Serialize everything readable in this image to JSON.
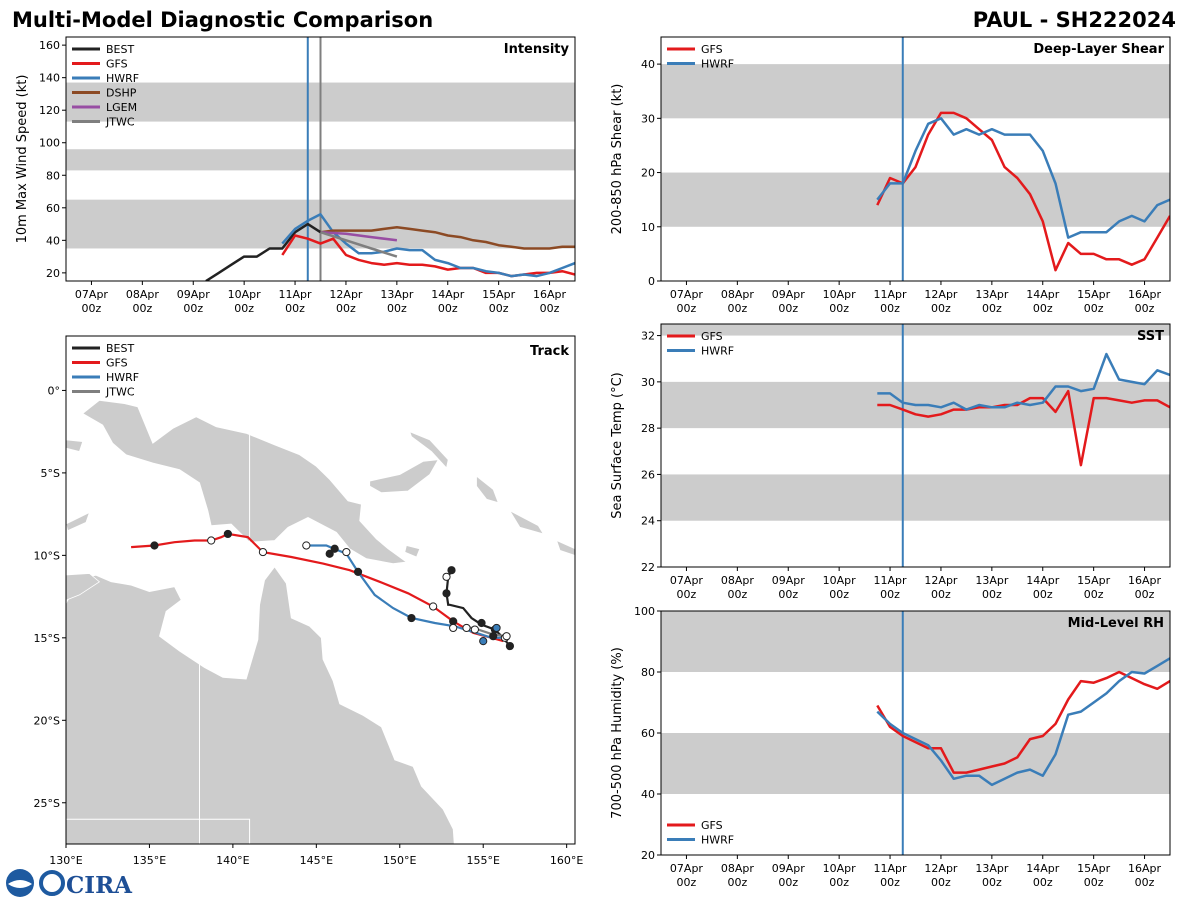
{
  "title_left": "Multi-Model Diagnostic Comparison",
  "title_right": "PAUL - SH222024",
  "logo_text": "CIRA",
  "time_axis": {
    "date_labels": [
      "07Apr",
      "08Apr",
      "09Apr",
      "10Apr",
      "11Apr",
      "12Apr",
      "13Apr",
      "14Apr",
      "15Apr",
      "16Apr"
    ],
    "hour_label": "00z",
    "range": [
      6.5,
      16.5
    ]
  },
  "colors": {
    "BEST": "#222222",
    "GFS": "#e31a1c",
    "HWRF": "#3a7db8",
    "DSHP": "#8c4a24",
    "LGEM": "#984ea3",
    "JTWC": "#7f7f7f",
    "band": "#cccccc",
    "land": "#cccccc"
  },
  "chart_data": [
    {
      "id": "intensity",
      "type": "line",
      "title": "Intensity",
      "ylabel": "10m Max Wind Speed (kt)",
      "ylim": [
        15,
        165
      ],
      "yticks": [
        20,
        40,
        60,
        80,
        100,
        120,
        140,
        160
      ],
      "bands": [
        [
          35,
          65
        ],
        [
          83,
          96
        ],
        [
          113,
          137
        ]
      ],
      "vlines": [
        {
          "x": 11.25,
          "color": "HWRF"
        },
        {
          "x": 11.5,
          "color": "JTWC"
        }
      ],
      "legend": [
        "BEST",
        "GFS",
        "HWRF",
        "DSHP",
        "LGEM",
        "JTWC"
      ],
      "series": [
        {
          "name": "BEST",
          "x": [
            9.25,
            9.5,
            9.75,
            10.0,
            10.25,
            10.5,
            10.75,
            11.0,
            11.25,
            11.5
          ],
          "y": [
            15,
            20,
            25,
            30,
            30,
            35,
            35,
            45,
            50,
            45
          ]
        },
        {
          "name": "GFS",
          "x": [
            10.75,
            11.0,
            11.25,
            11.5,
            11.75,
            12.0,
            12.25,
            12.5,
            12.75,
            13.0,
            13.25,
            13.5,
            13.75,
            14.0,
            14.25,
            14.5,
            14.75,
            15.0,
            15.25,
            15.5,
            15.75,
            16.0,
            16.25,
            16.5
          ],
          "y": [
            31,
            43,
            41,
            38,
            41,
            31,
            28,
            26,
            25,
            26,
            25,
            25,
            24,
            22,
            23,
            23,
            20,
            20,
            18,
            19,
            20,
            20,
            21,
            19
          ]
        },
        {
          "name": "HWRF",
          "x": [
            10.75,
            11.0,
            11.25,
            11.5,
            11.75,
            12.0,
            12.25,
            12.5,
            12.75,
            13.0,
            13.25,
            13.5,
            13.75,
            14.0,
            14.25,
            14.5,
            14.75,
            15.0,
            15.25,
            15.5,
            15.75,
            16.0,
            16.25,
            16.5
          ],
          "y": [
            38,
            47,
            52,
            56,
            45,
            38,
            32,
            32,
            33,
            35,
            34,
            34,
            28,
            26,
            23,
            23,
            21,
            20,
            18,
            19,
            18,
            20,
            23,
            26
          ]
        },
        {
          "name": "DSHP",
          "x": [
            11.5,
            11.75,
            12.0,
            12.25,
            12.5,
            12.75,
            13.0,
            13.25,
            13.5,
            13.75,
            14.0,
            14.25,
            14.5,
            14.75,
            15.0,
            15.25,
            15.5,
            15.75,
            16.0,
            16.25,
            16.5
          ],
          "y": [
            45,
            46,
            46,
            46,
            46,
            47,
            48,
            47,
            46,
            45,
            43,
            42,
            40,
            39,
            37,
            36,
            35,
            35,
            35,
            36,
            36
          ]
        },
        {
          "name": "LGEM",
          "x": [
            11.5,
            12.0,
            12.5,
            13.0
          ],
          "y": [
            45,
            44,
            42,
            40
          ]
        },
        {
          "name": "JTWC",
          "x": [
            11.5,
            12.0,
            12.5,
            13.0
          ],
          "y": [
            45,
            40,
            35,
            30
          ]
        }
      ]
    },
    {
      "id": "shear",
      "type": "line",
      "title": "Deep-Layer Shear",
      "ylabel": "200-850 hPa Shear (kt)",
      "ylim": [
        0,
        45
      ],
      "yticks": [
        0,
        10,
        20,
        30,
        40
      ],
      "bands": [
        [
          10,
          20
        ],
        [
          30,
          40
        ]
      ],
      "vlines": [
        {
          "x": 11.25,
          "color": "HWRF"
        }
      ],
      "legend": [
        "GFS",
        "HWRF"
      ],
      "series": [
        {
          "name": "GFS",
          "x": [
            10.75,
            11.0,
            11.25,
            11.5,
            11.75,
            12.0,
            12.25,
            12.5,
            12.75,
            13.0,
            13.25,
            13.5,
            13.75,
            14.0,
            14.25,
            14.5,
            14.75,
            15.0,
            15.25,
            15.5,
            15.75,
            16.0,
            16.25,
            16.5
          ],
          "y": [
            14,
            19,
            18,
            21,
            27,
            31,
            31,
            30,
            28,
            26,
            21,
            19,
            16,
            11,
            2,
            7,
            5,
            5,
            4,
            4,
            3,
            4,
            8,
            12
          ]
        },
        {
          "name": "HWRF",
          "x": [
            10.75,
            11.0,
            11.25,
            11.5,
            11.75,
            12.0,
            12.25,
            12.5,
            12.75,
            13.0,
            13.25,
            13.5,
            13.75,
            14.0,
            14.25,
            14.5,
            14.75,
            15.0,
            15.25,
            15.5,
            15.75,
            16.0,
            16.25,
            16.5
          ],
          "y": [
            15,
            18,
            18,
            24,
            29,
            30,
            27,
            28,
            27,
            28,
            27,
            27,
            27,
            24,
            18,
            8,
            9,
            9,
            9,
            11,
            12,
            11,
            14,
            15
          ]
        }
      ]
    },
    {
      "id": "sst",
      "type": "line",
      "title": "SST",
      "ylabel": "Sea Surface Temp (°C)",
      "ylim": [
        22,
        32.5
      ],
      "yticks": [
        22,
        24,
        26,
        28,
        30,
        32
      ],
      "bands": [
        [
          24,
          26
        ],
        [
          28,
          30
        ],
        [
          32,
          32.5
        ]
      ],
      "vlines": [
        {
          "x": 11.25,
          "color": "HWRF"
        }
      ],
      "legend": [
        "GFS",
        "HWRF"
      ],
      "series": [
        {
          "name": "GFS",
          "x": [
            10.75,
            11.0,
            11.25,
            11.5,
            11.75,
            12.0,
            12.25,
            12.5,
            12.75,
            13.0,
            13.25,
            13.5,
            13.75,
            14.0,
            14.25,
            14.5,
            14.75,
            15.0,
            15.25,
            15.5,
            15.75,
            16.0,
            16.25,
            16.5
          ],
          "y": [
            29.0,
            29.0,
            28.8,
            28.6,
            28.5,
            28.6,
            28.8,
            28.8,
            28.9,
            28.9,
            29.0,
            29.0,
            29.3,
            29.3,
            28.7,
            29.6,
            26.4,
            29.3,
            29.3,
            29.2,
            29.1,
            29.2,
            29.2,
            28.9
          ]
        },
        {
          "name": "HWRF",
          "x": [
            10.75,
            11.0,
            11.25,
            11.5,
            11.75,
            12.0,
            12.25,
            12.5,
            12.75,
            13.0,
            13.25,
            13.5,
            13.75,
            14.0,
            14.25,
            14.5,
            14.75,
            15.0,
            15.25,
            15.5,
            15.75,
            16.0,
            16.25,
            16.5
          ],
          "y": [
            29.5,
            29.5,
            29.1,
            29.0,
            29.0,
            28.9,
            29.1,
            28.8,
            29.0,
            28.9,
            28.9,
            29.1,
            29.0,
            29.1,
            29.8,
            29.8,
            29.6,
            29.7,
            31.2,
            30.1,
            30.0,
            29.9,
            30.5,
            30.3
          ]
        }
      ]
    },
    {
      "id": "rh",
      "type": "line",
      "title": "Mid-Level RH",
      "ylabel": "700-500 hPa Humidity (%)",
      "ylim": [
        20,
        100
      ],
      "yticks": [
        20,
        40,
        60,
        80,
        100
      ],
      "bands": [
        [
          40,
          60
        ],
        [
          80,
          100
        ]
      ],
      "vlines": [
        {
          "x": 11.25,
          "color": "HWRF"
        }
      ],
      "legend": [
        "GFS",
        "HWRF"
      ],
      "series": [
        {
          "name": "GFS",
          "x": [
            10.75,
            11.0,
            11.25,
            11.5,
            11.75,
            12.0,
            12.25,
            12.5,
            12.75,
            13.0,
            13.25,
            13.5,
            13.75,
            14.0,
            14.25,
            14.5,
            14.75,
            15.0,
            15.25,
            15.5,
            15.75,
            16.0,
            16.25,
            16.5
          ],
          "y": [
            69,
            62,
            59,
            57,
            55,
            55,
            47,
            47,
            48,
            49,
            50,
            52,
            58,
            59,
            63,
            71,
            77,
            76.5,
            78,
            80,
            78,
            76,
            74.5,
            77
          ]
        },
        {
          "name": "HWRF",
          "x": [
            10.75,
            11.0,
            11.25,
            11.5,
            11.75,
            12.0,
            12.25,
            12.5,
            12.75,
            13.0,
            13.25,
            13.5,
            13.75,
            14.0,
            14.25,
            14.5,
            14.75,
            15.0,
            15.25,
            15.5,
            15.75,
            16.0,
            16.25,
            16.5
          ],
          "y": [
            67,
            63,
            60,
            58,
            56,
            51,
            45,
            46,
            46,
            43,
            45,
            47,
            48,
            46,
            53,
            66,
            67,
            70,
            73,
            77,
            80,
            79.5,
            82,
            84.5
          ]
        }
      ]
    },
    {
      "id": "track",
      "type": "scatter",
      "title": "Track",
      "xlim": [
        130,
        160.5
      ],
      "ylim": [
        -27.5,
        3.3
      ],
      "xticks": [
        130,
        135,
        140,
        145,
        150,
        155,
        160
      ],
      "xtick_labels": [
        "130°E",
        "135°E",
        "140°E",
        "145°E",
        "150°E",
        "155°E",
        "160°E"
      ],
      "yticks": [
        0,
        -5,
        -10,
        -15,
        -20,
        -25
      ],
      "ytick_labels": [
        "0°",
        "5°S",
        "10°S",
        "15°S",
        "20°S",
        "25°S"
      ],
      "legend": [
        "BEST",
        "GFS",
        "HWRF",
        "JTWC"
      ],
      "series": [
        {
          "name": "BEST",
          "lon": [
            153.1,
            152.9,
            152.8,
            152.9,
            153.0,
            153.8,
            154.3,
            154.9,
            155.7,
            156.2,
            156.6
          ],
          "lat": [
            -10.9,
            -11.3,
            -12.3,
            -13.0,
            -13.0,
            -13.2,
            -13.8,
            -14.2,
            -14.5,
            -15.0,
            -15.5
          ],
          "markers": [
            [
              153.1,
              -10.9,
              "filled"
            ],
            [
              152.8,
              -11.3,
              "open"
            ],
            [
              152.8,
              -12.3,
              "filled"
            ],
            [
              154.9,
              -14.1,
              "filled"
            ],
            [
              155.7,
              -14.5,
              "filled"
            ],
            [
              156.6,
              -15.5,
              "filled"
            ]
          ]
        },
        {
          "name": "GFS",
          "lon": [
            133.9,
            135.3,
            136.5,
            137.7,
            138.7,
            139.3,
            139.7,
            140.9,
            141.8,
            143.5,
            145.4,
            147.0,
            148.8,
            150.5,
            152.0,
            153.2,
            154.4,
            155.5,
            156.2
          ],
          "lat": [
            -9.5,
            -9.4,
            -9.2,
            -9.1,
            -9.1,
            -8.9,
            -8.7,
            -8.9,
            -9.8,
            -10.1,
            -10.5,
            -10.9,
            -11.6,
            -12.3,
            -13.1,
            -14.0,
            -14.7,
            -15.0,
            -15.2
          ],
          "markers": [
            [
              135.3,
              -9.4,
              "filled"
            ],
            [
              138.7,
              -9.1,
              "open"
            ],
            [
              139.7,
              -8.7,
              "filled"
            ],
            [
              141.8,
              -9.8,
              "open"
            ],
            [
              152.0,
              -13.1,
              "open"
            ],
            [
              153.2,
              -14.0,
              "filled"
            ],
            [
              154.5,
              -14.5,
              "open"
            ],
            [
              155.6,
              -14.9,
              "filled"
            ],
            [
              156.3,
              -15.0,
              "open"
            ]
          ]
        },
        {
          "name": "HWRF",
          "lon": [
            144.4,
            145.6,
            146.8,
            147.5,
            148.5,
            149.6,
            150.7,
            152.1,
            153.3,
            154.6,
            155.5,
            156.2
          ],
          "lat": [
            -9.4,
            -9.4,
            -9.9,
            -11.0,
            -12.4,
            -13.2,
            -13.8,
            -14.1,
            -14.3,
            -14.7,
            -15.0,
            -15.0
          ],
          "markers": [
            [
              144.4,
              -9.4,
              "open"
            ],
            [
              146.8,
              -9.8,
              "open"
            ],
            [
              145.8,
              -9.9,
              "filled"
            ],
            [
              146.1,
              -9.6,
              "filled"
            ],
            [
              147.5,
              -11.0,
              "filled"
            ],
            [
              150.7,
              -13.8,
              "filled"
            ],
            [
              153.2,
              -14.4,
              "open"
            ],
            [
              155.0,
              -15.2,
              "filled"
            ],
            [
              155.8,
              -14.4,
              "filled"
            ]
          ]
        },
        {
          "name": "JTWC",
          "lon": [
            153.9,
            154.7,
            155.6,
            156.3
          ],
          "lat": [
            -14.3,
            -14.5,
            -14.8,
            -14.9
          ],
          "markers": [
            [
              154.0,
              -14.4,
              "open"
            ],
            [
              156.4,
              -14.9,
              "open"
            ]
          ]
        }
      ]
    }
  ]
}
